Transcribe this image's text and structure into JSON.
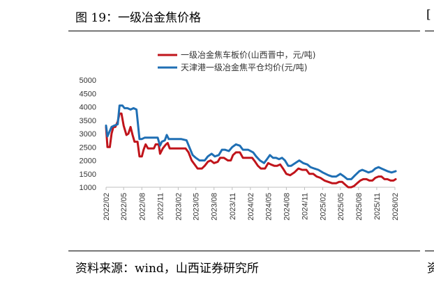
{
  "figure": {
    "title": "图 19：一级冶金焦价格",
    "source": "资料来源：wind，山西证券研究所",
    "edge_glyph_top": "[",
    "edge_glyph_bottom": "资"
  },
  "chart_data": {
    "type": "line",
    "title": "",
    "xlabel": "",
    "ylabel": "",
    "ylim": [
      1000,
      5000
    ],
    "yticks": [
      1000,
      1500,
      2000,
      2500,
      3000,
      3500,
      4000,
      4500,
      5000
    ],
    "xlim": [
      "2022-02",
      "2026-02"
    ],
    "xticks": [
      "2022/02",
      "2022/05",
      "2022/08",
      "2022/11",
      "2023/02",
      "2023/05",
      "2023/08",
      "2023/11",
      "2024/02",
      "2024/05",
      "2024/08",
      "2024/11",
      "2025/02",
      "2025/05",
      "2025/08",
      "2025/11",
      "2026/02"
    ],
    "grid": false,
    "legend_position": "top-center",
    "series": [
      {
        "name": "一级冶金焦车板价(山西晋中，元/吨)",
        "color": "#c0141b",
        "points": [
          [
            "2022-02-01",
            3250
          ],
          [
            "2022-02-08",
            2500
          ],
          [
            "2022-02-20",
            2500
          ],
          [
            "2022-03-01",
            3000
          ],
          [
            "2022-03-10",
            3250
          ],
          [
            "2022-03-20",
            3250
          ],
          [
            "2022-04-01",
            3450
          ],
          [
            "2022-04-10",
            3750
          ],
          [
            "2022-04-20",
            3750
          ],
          [
            "2022-05-01",
            3300
          ],
          [
            "2022-05-15",
            2950
          ],
          [
            "2022-05-25",
            3000
          ],
          [
            "2022-06-05",
            3250
          ],
          [
            "2022-06-15",
            2950
          ],
          [
            "2022-06-25",
            2700
          ],
          [
            "2022-07-10",
            2700
          ],
          [
            "2022-07-20",
            2150
          ],
          [
            "2022-08-01",
            2150
          ],
          [
            "2022-08-10",
            2400
          ],
          [
            "2022-08-20",
            2600
          ],
          [
            "2022-09-01",
            2450
          ],
          [
            "2022-09-15",
            2450
          ],
          [
            "2022-10-01",
            2450
          ],
          [
            "2022-10-10",
            2600
          ],
          [
            "2022-10-25",
            2600
          ],
          [
            "2022-11-01",
            2250
          ],
          [
            "2022-11-15",
            2450
          ],
          [
            "2022-12-01",
            2600
          ],
          [
            "2022-12-10",
            2650
          ],
          [
            "2022-12-20",
            2450
          ],
          [
            "2023-01-15",
            2450
          ],
          [
            "2023-02-15",
            2450
          ],
          [
            "2023-03-10",
            2450
          ],
          [
            "2023-03-25",
            2300
          ],
          [
            "2023-04-10",
            2000
          ],
          [
            "2023-04-25",
            1850
          ],
          [
            "2023-05-10",
            1700
          ],
          [
            "2023-06-01",
            1700
          ],
          [
            "2023-06-15",
            1800
          ],
          [
            "2023-07-01",
            1950
          ],
          [
            "2023-07-15",
            2000
          ],
          [
            "2023-08-01",
            1900
          ],
          [
            "2023-08-20",
            1950
          ],
          [
            "2023-09-01",
            2100
          ],
          [
            "2023-09-20",
            2100
          ],
          [
            "2023-10-10",
            2000
          ],
          [
            "2023-10-25",
            2000
          ],
          [
            "2023-11-05",
            2200
          ],
          [
            "2023-11-20",
            2300
          ],
          [
            "2023-12-10",
            2300
          ],
          [
            "2023-12-25",
            2100
          ],
          [
            "2024-01-15",
            2100
          ],
          [
            "2024-02-10",
            2100
          ],
          [
            "2024-02-25",
            1950
          ],
          [
            "2024-03-10",
            1800
          ],
          [
            "2024-03-25",
            1700
          ],
          [
            "2024-04-15",
            1700
          ],
          [
            "2024-05-01",
            1900
          ],
          [
            "2024-05-15",
            1850
          ],
          [
            "2024-06-01",
            1800
          ],
          [
            "2024-06-15",
            1800
          ],
          [
            "2024-07-01",
            1850
          ],
          [
            "2024-07-15",
            1700
          ],
          [
            "2024-08-01",
            1500
          ],
          [
            "2024-08-20",
            1450
          ],
          [
            "2024-09-10",
            1550
          ],
          [
            "2024-10-01",
            1700
          ],
          [
            "2024-10-20",
            1650
          ],
          [
            "2024-11-10",
            1650
          ],
          [
            "2024-11-25",
            1500
          ],
          [
            "2024-12-15",
            1500
          ],
          [
            "2025-01-01",
            1400
          ],
          [
            "2025-01-20",
            1350
          ],
          [
            "2025-02-10",
            1250
          ],
          [
            "2025-03-01",
            1200
          ],
          [
            "2025-03-20",
            1150
          ],
          [
            "2025-04-10",
            1150
          ],
          [
            "2025-04-25",
            1200
          ],
          [
            "2025-05-10",
            1200
          ],
          [
            "2025-05-25",
            1100
          ],
          [
            "2025-06-10",
            1000
          ],
          [
            "2025-06-25",
            1000
          ],
          [
            "2025-07-10",
            1050
          ],
          [
            "2025-07-25",
            1150
          ],
          [
            "2025-08-10",
            1250
          ],
          [
            "2025-08-25",
            1300
          ],
          [
            "2025-09-10",
            1300
          ],
          [
            "2025-09-25",
            1250
          ],
          [
            "2025-10-10",
            1250
          ],
          [
            "2025-10-25",
            1350
          ],
          [
            "2025-11-10",
            1400
          ],
          [
            "2025-11-25",
            1400
          ],
          [
            "2025-12-10",
            1300
          ],
          [
            "2025-12-25",
            1300
          ],
          [
            "2026-01-10",
            1250
          ],
          [
            "2026-01-25",
            1250
          ],
          [
            "2026-02-05",
            1300
          ]
        ]
      },
      {
        "name": "天津港一级冶金焦平仓均价(元/吨)",
        "color": "#1f6fb4",
        "points": [
          [
            "2022-02-01",
            3300
          ],
          [
            "2022-02-08",
            2900
          ],
          [
            "2022-02-20",
            3100
          ],
          [
            "2022-03-01",
            3250
          ],
          [
            "2022-03-15",
            3300
          ],
          [
            "2022-04-01",
            3350
          ],
          [
            "2022-04-10",
            4050
          ],
          [
            "2022-04-25",
            4050
          ],
          [
            "2022-05-05",
            3950
          ],
          [
            "2022-05-20",
            3950
          ],
          [
            "2022-06-05",
            3900
          ],
          [
            "2022-06-20",
            3950
          ],
          [
            "2022-07-05",
            3900
          ],
          [
            "2022-07-20",
            2800
          ],
          [
            "2022-08-01",
            2800
          ],
          [
            "2022-08-15",
            2850
          ],
          [
            "2022-09-01",
            2850
          ],
          [
            "2022-10-01",
            2850
          ],
          [
            "2022-10-20",
            2850
          ],
          [
            "2022-11-01",
            2550
          ],
          [
            "2022-11-10",
            2700
          ],
          [
            "2022-11-25",
            2750
          ],
          [
            "2022-12-05",
            2950
          ],
          [
            "2022-12-15",
            2800
          ],
          [
            "2023-01-15",
            2800
          ],
          [
            "2023-02-15",
            2800
          ],
          [
            "2023-03-15",
            2750
          ],
          [
            "2023-04-01",
            2450
          ],
          [
            "2023-04-15",
            2200
          ],
          [
            "2023-05-01",
            2100
          ],
          [
            "2023-05-20",
            2000
          ],
          [
            "2023-06-15",
            2000
          ],
          [
            "2023-07-01",
            2150
          ],
          [
            "2023-07-20",
            2250
          ],
          [
            "2023-08-05",
            2150
          ],
          [
            "2023-08-25",
            2200
          ],
          [
            "2023-09-10",
            2400
          ],
          [
            "2023-09-25",
            2400
          ],
          [
            "2023-10-15",
            2350
          ],
          [
            "2023-11-01",
            2500
          ],
          [
            "2023-11-20",
            2600
          ],
          [
            "2023-12-10",
            2550
          ],
          [
            "2023-12-25",
            2400
          ],
          [
            "2024-01-20",
            2400
          ],
          [
            "2024-02-15",
            2300
          ],
          [
            "2024-03-01",
            2150
          ],
          [
            "2024-03-20",
            2000
          ],
          [
            "2024-04-10",
            1900
          ],
          [
            "2024-04-25",
            2050
          ],
          [
            "2024-05-10",
            2200
          ],
          [
            "2024-05-25",
            2100
          ],
          [
            "2024-06-10",
            2100
          ],
          [
            "2024-06-25",
            2050
          ],
          [
            "2024-07-10",
            2100
          ],
          [
            "2024-07-25",
            2000
          ],
          [
            "2024-08-10",
            1800
          ],
          [
            "2024-08-25",
            1800
          ],
          [
            "2024-09-15",
            1900
          ],
          [
            "2024-10-05",
            2000
          ],
          [
            "2024-10-25",
            1900
          ],
          [
            "2024-11-15",
            1850
          ],
          [
            "2024-12-01",
            1750
          ],
          [
            "2024-12-20",
            1700
          ],
          [
            "2025-01-10",
            1650
          ],
          [
            "2025-02-01",
            1550
          ],
          [
            "2025-03-01",
            1450
          ],
          [
            "2025-03-20",
            1400
          ],
          [
            "2025-04-10",
            1400
          ],
          [
            "2025-05-01",
            1500
          ],
          [
            "2025-05-20",
            1400
          ],
          [
            "2025-06-05",
            1300
          ],
          [
            "2025-06-25",
            1300
          ],
          [
            "2025-07-15",
            1450
          ],
          [
            "2025-08-05",
            1600
          ],
          [
            "2025-08-20",
            1650
          ],
          [
            "2025-09-05",
            1600
          ],
          [
            "2025-09-20",
            1550
          ],
          [
            "2025-10-10",
            1600
          ],
          [
            "2025-10-25",
            1700
          ],
          [
            "2025-11-10",
            1750
          ],
          [
            "2025-11-25",
            1700
          ],
          [
            "2025-12-10",
            1650
          ],
          [
            "2025-12-25",
            1600
          ],
          [
            "2026-01-15",
            1550
          ],
          [
            "2026-02-05",
            1600
          ]
        ]
      }
    ]
  }
}
